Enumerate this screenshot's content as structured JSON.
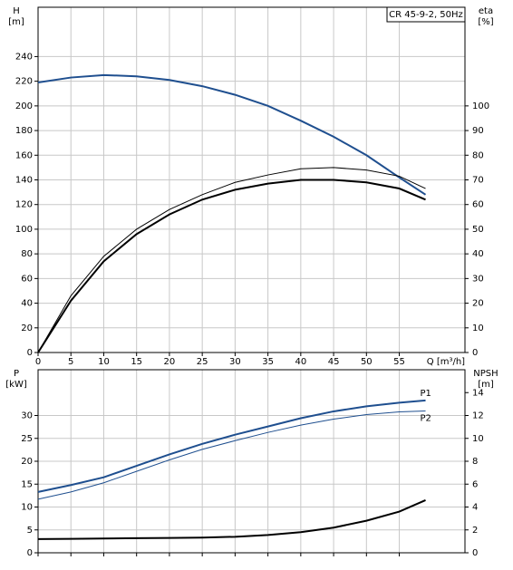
{
  "chart_data": [
    {
      "type": "line",
      "title": "CR 45-9-2, 50Hz",
      "ylabel": [
        "H",
        "[m]"
      ],
      "y2label": [
        "eta",
        "[%]"
      ],
      "xlabel": "Q [m³/h]",
      "x": [
        0,
        5,
        10,
        15,
        20,
        25,
        30,
        35,
        40,
        45,
        50,
        55,
        59
      ],
      "xlim": [
        0,
        65
      ],
      "xticks": [
        0,
        5,
        10,
        15,
        20,
        25,
        30,
        35,
        40,
        45,
        50,
        55
      ],
      "ylim": [
        0,
        280
      ],
      "yticks": [
        0,
        20,
        40,
        60,
        80,
        100,
        120,
        140,
        160,
        180,
        200,
        220,
        240
      ],
      "y2lim": [
        0,
        140
      ],
      "y2ticks": [
        0,
        10,
        20,
        30,
        40,
        50,
        60,
        70,
        80,
        90,
        100
      ],
      "grid": true,
      "series": [
        {
          "color": "#1f4f8f",
          "width": 2,
          "values": [
            219,
            223,
            225,
            224,
            221,
            216,
            209,
            200,
            188,
            175,
            160,
            142,
            128
          ]
        },
        {
          "color": "#000000",
          "width": 1,
          "axis": "y2",
          "values": [
            0,
            23,
            39,
            50,
            58,
            64,
            69,
            72,
            74.5,
            75,
            74,
            71.5,
            66.5
          ]
        },
        {
          "color": "#000000",
          "width": 2,
          "axis": "y2",
          "values": [
            0,
            21,
            37,
            48,
            56,
            62,
            66,
            68.5,
            70,
            70,
            69,
            66.5,
            62
          ]
        }
      ]
    },
    {
      "type": "line",
      "ylabel": [
        "P",
        "[kW]"
      ],
      "y2label": [
        "NPSH",
        "[m]"
      ],
      "x": [
        0,
        5,
        10,
        15,
        20,
        25,
        30,
        35,
        40,
        45,
        50,
        55,
        59
      ],
      "xlim": [
        0,
        65
      ],
      "ylim": [
        0,
        40
      ],
      "yticks": [
        0,
        5,
        10,
        15,
        20,
        25,
        30
      ],
      "y2lim": [
        0,
        16
      ],
      "y2ticks": [
        0,
        2,
        4,
        6,
        8,
        10,
        12,
        14
      ],
      "grid": true,
      "series": [
        {
          "name": "P1",
          "color": "#1f4f8f",
          "width": 2,
          "values": [
            13.3,
            14.8,
            16.5,
            19,
            21.5,
            23.8,
            25.8,
            27.6,
            29.4,
            30.9,
            32,
            32.8,
            33.3
          ]
        },
        {
          "name": "P2",
          "color": "#1f4f8f",
          "width": 1,
          "values": [
            11.7,
            13.3,
            15.3,
            17.8,
            20.3,
            22.6,
            24.5,
            26.3,
            27.9,
            29.2,
            30.2,
            30.8,
            31
          ]
        },
        {
          "color": "#000000",
          "width": 2,
          "axis": "y2",
          "values": [
            1.2,
            1.22,
            1.25,
            1.28,
            1.3,
            1.33,
            1.4,
            1.55,
            1.8,
            2.2,
            2.8,
            3.6,
            4.6
          ]
        }
      ]
    }
  ]
}
